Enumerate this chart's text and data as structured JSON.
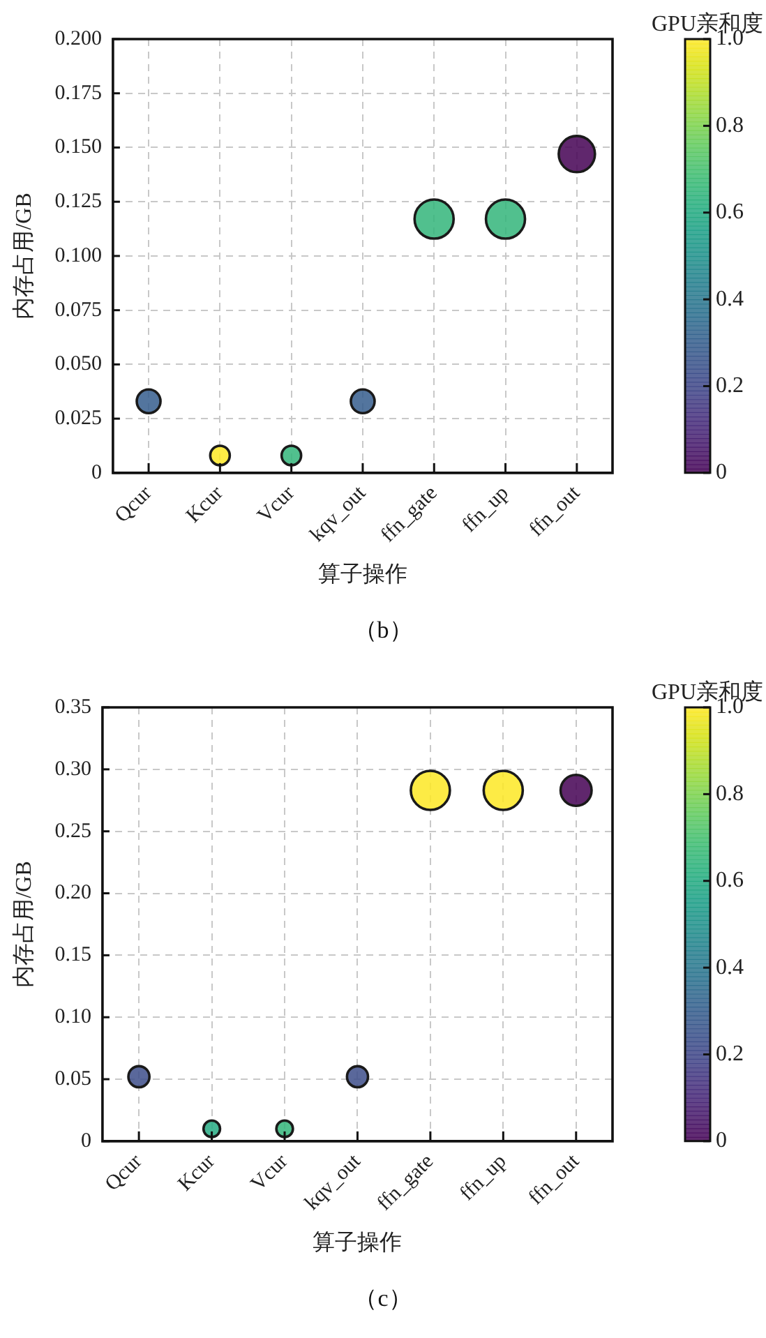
{
  "chart_data": [
    {
      "type": "bubble",
      "xlabel": "算子操作",
      "ylabel": "内存占用/GB",
      "clabel": "GPU亲和度",
      "annotations": [
        "（b）"
      ],
      "categories": [
        "Qcur",
        "Kcur",
        "Vcur",
        "kqv_out",
        "ffn_gate",
        "ffn_up",
        "ffn_out"
      ],
      "values": [
        0.033,
        0.008,
        0.008,
        0.033,
        0.117,
        0.117,
        0.147
      ],
      "sizes": [
        0.37,
        0.25,
        0.25,
        0.37,
        1,
        1,
        0.86
      ],
      "cvalues": [
        0.3,
        1.0,
        0.65,
        0.3,
        0.65,
        0.65,
        0.0
      ],
      "ylim": [
        0,
        0.2
      ],
      "yticks": [
        0,
        {
          "value": 0.025,
          "label": "0.025"
        },
        {
          "value": 0.05,
          "label": "0.050"
        },
        {
          "value": 0.075,
          "label": "0.075"
        },
        {
          "value": 0.1,
          "label": "0.100"
        },
        {
          "value": 0.125,
          "label": "0.125"
        },
        {
          "value": 0.15,
          "label": "0.150"
        },
        {
          "value": 0.175,
          "label": "0.175"
        },
        {
          "value": 0.2,
          "label": "0.200"
        }
      ],
      "clim": [
        0,
        1
      ],
      "cticks": [
        0,
        0.2,
        0.4,
        0.6,
        0.8,
        {
          "value": 1,
          "label": "1.0"
        }
      ],
      "grid": true,
      "marker": "circle"
    },
    {
      "type": "bubble",
      "xlabel": "算子操作",
      "ylabel": "内存占用/GB",
      "clabel": "GPU亲和度",
      "annotations": [
        "（c）"
      ],
      "categories": [
        "Qcur",
        "Kcur",
        "Vcur",
        "kqv_out",
        "ffn_gate",
        "ffn_up",
        "ffn_out"
      ],
      "values": [
        0.052,
        0.01,
        0.01,
        0.052,
        0.283,
        0.283,
        0.283
      ],
      "sizes": [
        0.29,
        0.18,
        0.18,
        0.29,
        1,
        1,
        0.63
      ],
      "cvalues": [
        0.23,
        0.6,
        0.65,
        0.23,
        1.0,
        1.0,
        0.0
      ],
      "ylim": [
        0,
        0.35
      ],
      "yticks": [
        0,
        0.05,
        {
          "value": 0.1,
          "label": "0.10"
        },
        0.15,
        {
          "value": 0.2,
          "label": "0.20"
        },
        0.25,
        {
          "value": 0.3,
          "label": "0.30"
        },
        0.35
      ],
      "clim": [
        0,
        1
      ],
      "cticks": [
        0,
        0.2,
        0.4,
        0.6,
        0.8,
        {
          "value": 1,
          "label": "1.0"
        }
      ],
      "grid": true,
      "marker": "circle"
    }
  ]
}
